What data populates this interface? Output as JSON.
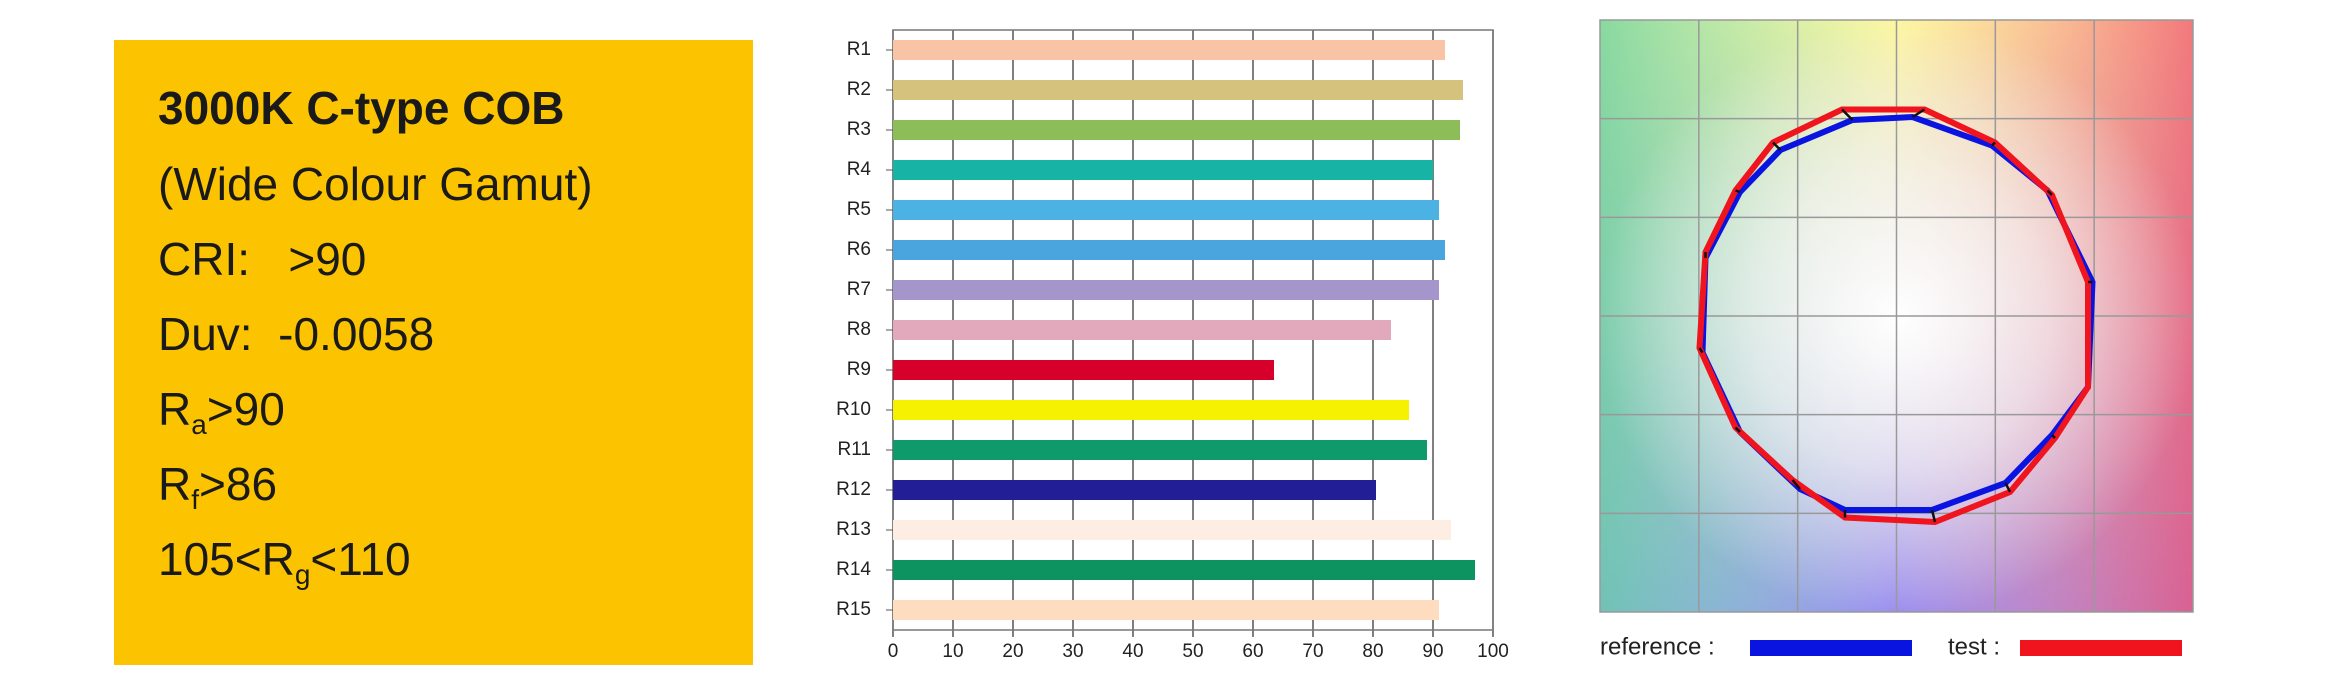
{
  "spec_card": {
    "title": "3000K C-type COB",
    "lines": [
      [
        {
          "text": "(Wide Colour Gamut)"
        }
      ],
      [
        {
          "text": "CRI:   >90"
        }
      ],
      [
        {
          "text": "Duv:  -0.0058"
        }
      ],
      [
        {
          "text": "R"
        },
        {
          "sub": "a"
        },
        {
          "text": ">90"
        }
      ],
      [
        {
          "text": "R"
        },
        {
          "sub": "f"
        },
        {
          "text": ">86"
        }
      ],
      [
        {
          "text": "105<R"
        },
        {
          "sub": "g"
        },
        {
          "text": "<110"
        }
      ]
    ]
  },
  "chart_data": {
    "type": "bar",
    "orientation": "horizontal",
    "categories": [
      "R1",
      "R2",
      "R3",
      "R4",
      "R5",
      "R6",
      "R7",
      "R8",
      "R9",
      "R10",
      "R11",
      "R12",
      "R13",
      "R14",
      "R15"
    ],
    "values": [
      92,
      95,
      94.5,
      90,
      91,
      92,
      91,
      83,
      63.5,
      86,
      89,
      80.5,
      93,
      97,
      91
    ],
    "colors": [
      "#f9c4a6",
      "#d5c27c",
      "#8cbd58",
      "#17b3a5",
      "#4cb2e4",
      "#4aa5de",
      "#a496cb",
      "#e2a9bd",
      "#d7002b",
      "#f6f100",
      "#0f9a6c",
      "#221e95",
      "#fdede2",
      "#0d9360",
      "#fddcc0"
    ],
    "xlim": [
      0,
      100
    ],
    "xticks": [
      0,
      10,
      20,
      30,
      40,
      50,
      60,
      70,
      80,
      90,
      100
    ],
    "grid": true
  },
  "gamut_chart": {
    "legend": [
      {
        "name": "reference :",
        "color": "#0a14e0"
      },
      {
        "name": "test :",
        "color": "#f0141e"
      }
    ]
  }
}
